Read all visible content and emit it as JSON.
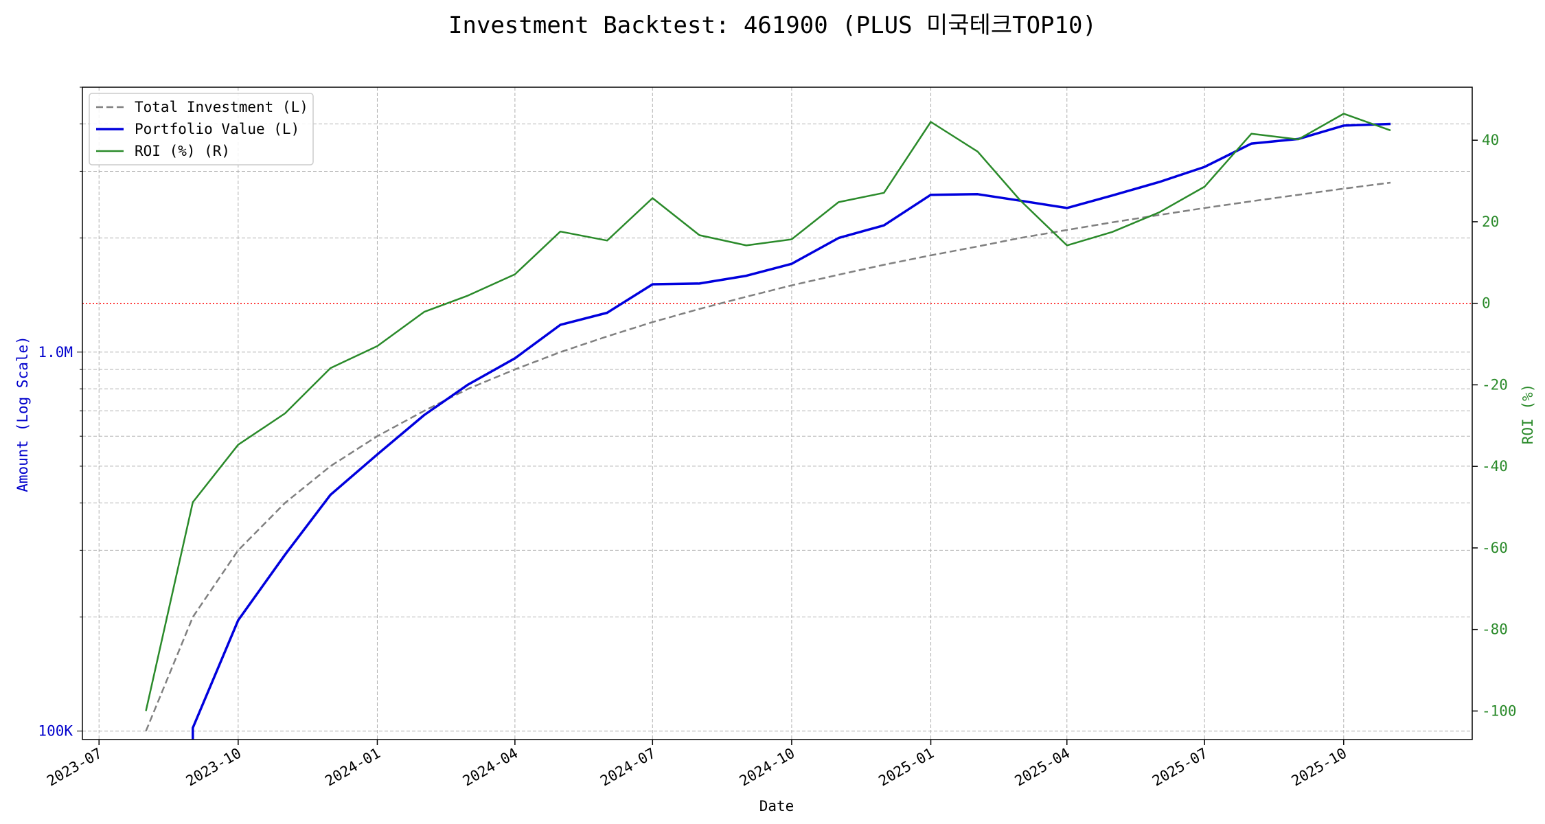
{
  "chart_data": {
    "type": "line",
    "title": "Investment Backtest: 461900 (PLUS 미국테크TOP10)",
    "xlabel": "Date",
    "ylabel_left": "Amount (Log Scale)",
    "ylabel_right": "ROI (%)",
    "y_left_scale": "log",
    "y_left_ticks": [
      100000,
      1000000
    ],
    "y_left_tick_labels": [
      "100K",
      "1.0M"
    ],
    "y_left_range": [
      95000,
      5000000
    ],
    "y_right_range": [
      -107,
      53
    ],
    "y_right_ticks": [
      -100,
      -80,
      -60,
      -40,
      -20,
      0,
      20,
      40
    ],
    "y_right_tick_labels": [
      "-100",
      "-80",
      "-60",
      "-40",
      "-20",
      "0",
      "20",
      "40"
    ],
    "x_range": [
      "2023-06-20",
      "2025-12-25"
    ],
    "x_ticks": [
      "2023-07-01",
      "2023-10-01",
      "2024-01-01",
      "2024-04-01",
      "2024-07-01",
      "2024-10-01",
      "2025-01-01",
      "2025-04-01",
      "2025-07-01",
      "2025-10-01"
    ],
    "x_tick_labels": [
      "2023-07",
      "2023-10",
      "2024-01",
      "2024-04",
      "2024-07",
      "2024-10",
      "2025-01",
      "2025-04",
      "2025-07",
      "2025-10"
    ],
    "grid": true,
    "legend_position": "top-left",
    "reference_line": {
      "axis": "right",
      "value": 0,
      "color": "#ff0000"
    },
    "x": [
      "2023-08-01",
      "2023-09-01",
      "2023-10-01",
      "2023-11-01",
      "2023-12-01",
      "2024-01-01",
      "2024-02-01",
      "2024-03-01",
      "2024-04-01",
      "2024-05-01",
      "2024-06-01",
      "2024-07-01",
      "2024-08-01",
      "2024-09-01",
      "2024-10-01",
      "2024-11-01",
      "2024-12-01",
      "2025-01-01",
      "2025-02-01",
      "2025-03-01",
      "2025-04-01",
      "2025-05-01",
      "2025-06-01",
      "2025-07-01",
      "2025-08-01",
      "2025-09-01",
      "2025-10-01",
      "2025-11-01"
    ],
    "series": [
      {
        "name": "Total Investment (L)",
        "axis": "left",
        "color": "#808080",
        "style": "dashed",
        "values": [
          100000,
          200000,
          300000,
          400000,
          500000,
          600000,
          700000,
          800000,
          900000,
          1000000,
          1100000,
          1200000,
          1300000,
          1400000,
          1500000,
          1600000,
          1700000,
          1800000,
          1900000,
          2000000,
          2100000,
          2200000,
          2300000,
          2400000,
          2500000,
          2600000,
          2700000,
          2800000
        ]
      },
      {
        "name": "Portfolio Value (L)",
        "axis": "left",
        "color": "#0000dd",
        "style": "solid",
        "width": 3.5,
        "values": [
          null,
          102000,
          196000,
          292000,
          420000,
          537000,
          682000,
          821000,
          963000,
          1180000,
          1270000,
          1510000,
          1517000,
          1590000,
          1710000,
          2000000,
          2160000,
          2600000,
          2610000,
          2510000,
          2400000,
          2590000,
          2810000,
          3080000,
          3550000,
          3650000,
          3960000,
          4000000
        ]
      },
      {
        "name": "ROI (%) (R)",
        "axis": "right",
        "color": "#2a8a2a",
        "style": "solid",
        "values": [
          -100,
          -48.8,
          -34.7,
          -27,
          -15.9,
          -10.5,
          -2.1,
          1.9,
          7.1,
          17.6,
          15.4,
          25.8,
          16.7,
          14.2,
          15.7,
          24.8,
          27.1,
          44.5,
          37.2,
          25.3,
          14.2,
          17.5,
          22.3,
          28.6,
          41.6,
          40.2,
          46.5,
          42.4
        ]
      }
    ]
  }
}
